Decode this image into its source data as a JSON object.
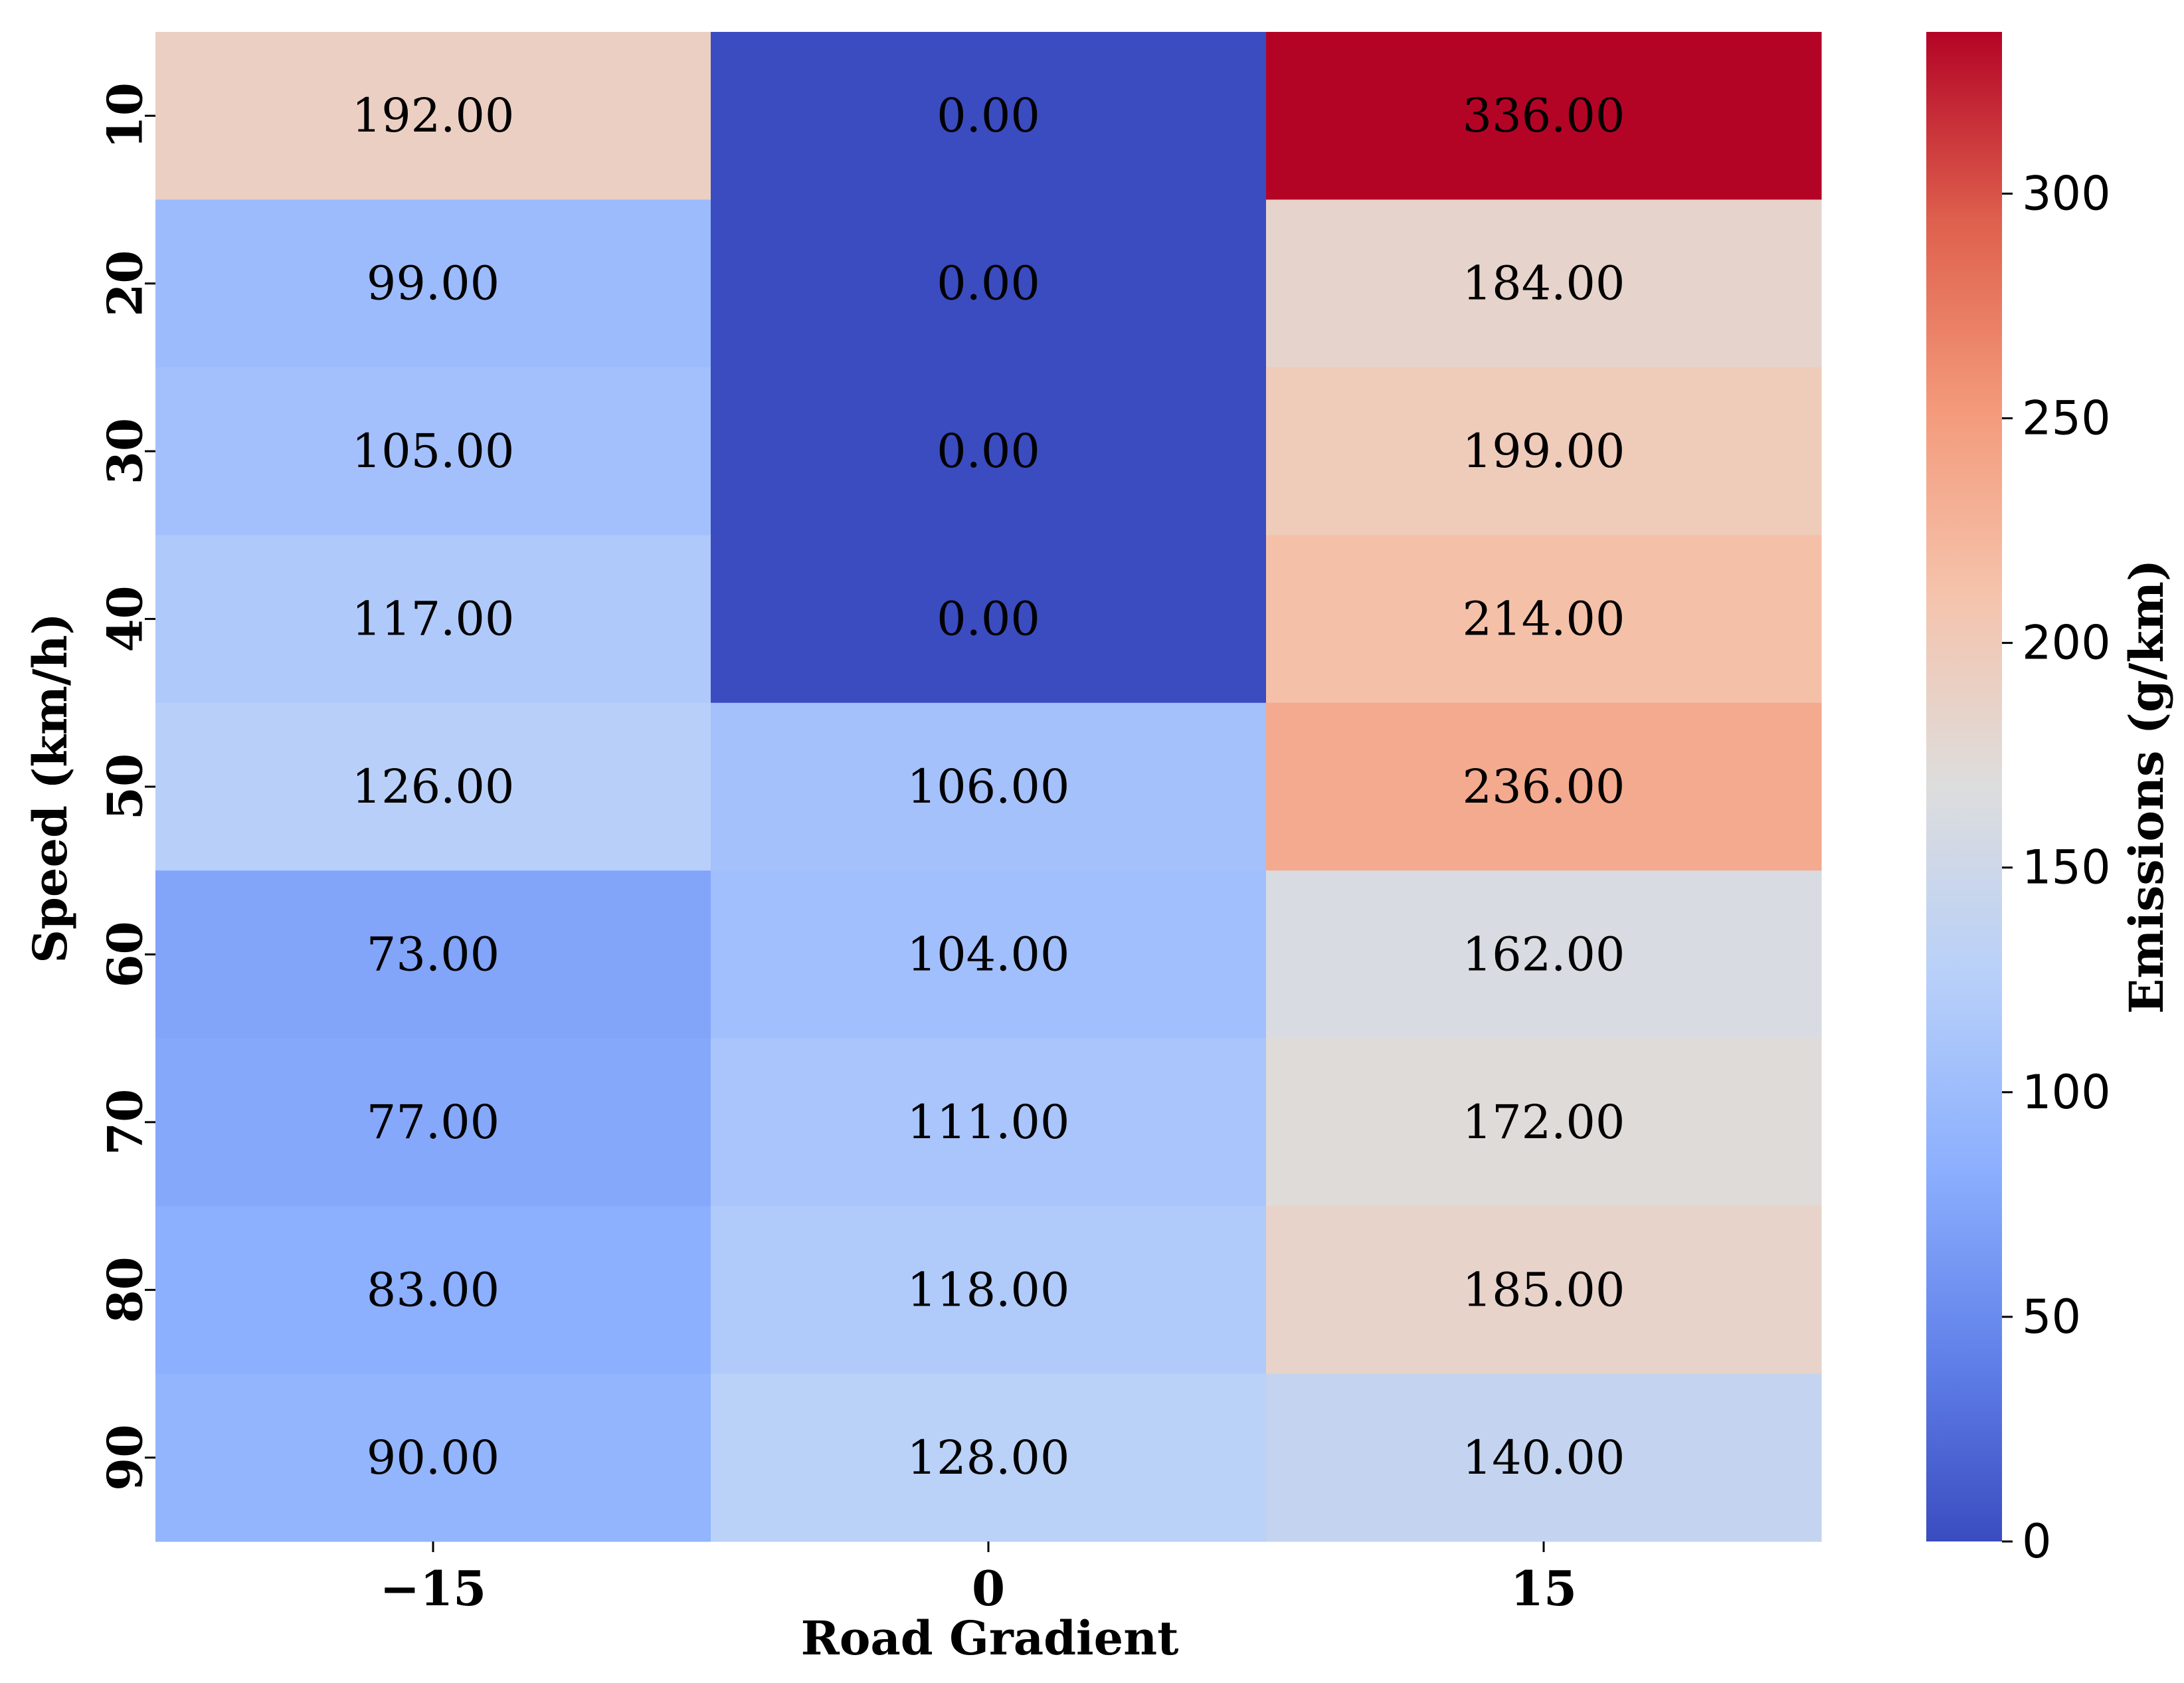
{
  "chart_data": {
    "type": "heatmap",
    "title": "",
    "xlabel": "Road Gradient",
    "ylabel": "Speed (km/h)",
    "x_categories": [
      "−15",
      "0",
      "15"
    ],
    "y_categories": [
      "10",
      "20",
      "30",
      "40",
      "50",
      "60",
      "70",
      "80",
      "90"
    ],
    "values": [
      [
        192.0,
        0.0,
        336.0
      ],
      [
        99.0,
        0.0,
        184.0
      ],
      [
        105.0,
        0.0,
        199.0
      ],
      [
        117.0,
        0.0,
        214.0
      ],
      [
        126.0,
        106.0,
        236.0
      ],
      [
        73.0,
        104.0,
        162.0
      ],
      [
        77.0,
        111.0,
        172.0
      ],
      [
        83.0,
        118.0,
        185.0
      ],
      [
        90.0,
        128.0,
        140.0
      ]
    ],
    "value_format": "0.00",
    "colormap": "coolwarm",
    "vmin": 0,
    "vmax": 336,
    "colorbar": {
      "label": "Emissions (g/km)",
      "ticks": [
        0,
        50,
        100,
        150,
        200,
        250,
        300
      ]
    },
    "grid": false
  }
}
